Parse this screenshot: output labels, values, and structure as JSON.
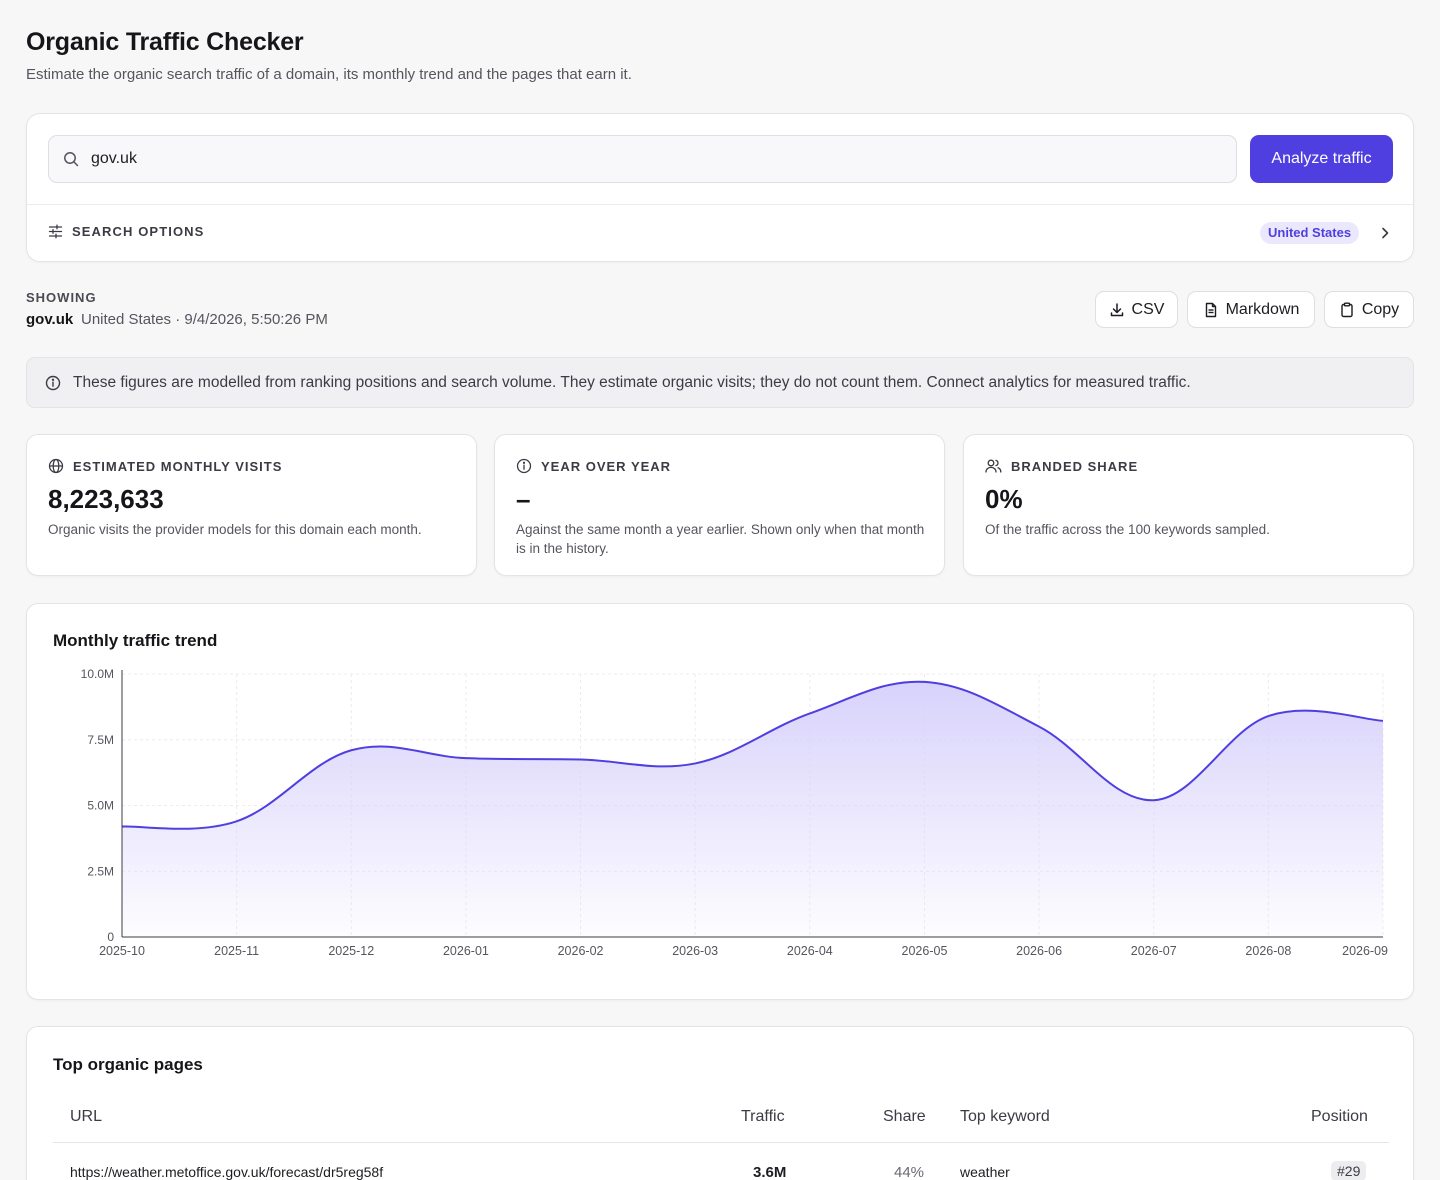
{
  "header": {
    "title": "Organic Traffic Checker",
    "subtitle": "Estimate the organic search traffic of a domain, its monthly trend and the pages that earn it."
  },
  "search": {
    "value": "gov.uk",
    "button_label": "Analyze traffic",
    "options_label": "SEARCH OPTIONS",
    "region_badge": "United States"
  },
  "showing": {
    "label": "SHOWING",
    "domain": "gov.uk",
    "meta": "United States · 9/4/2026, 5:50:26 PM"
  },
  "actions": {
    "csv": "CSV",
    "markdown": "Markdown",
    "copy": "Copy"
  },
  "notice": {
    "text": "These figures are modelled from ranking positions and search volume. They estimate organic visits; they do not count them. Connect analytics for measured traffic."
  },
  "stats": [
    {
      "icon": "globe-icon",
      "label": "ESTIMATED MONTHLY VISITS",
      "value": "8,223,633",
      "description": "Organic visits the provider models for this domain each month."
    },
    {
      "icon": "info-icon",
      "label": "YEAR OVER YEAR",
      "value": "–",
      "description": "Against the same month a year earlier. Shown only when that month is in the history."
    },
    {
      "icon": "users-icon",
      "label": "BRANDED SHARE",
      "value": "0%",
      "description": "Of the traffic across the 100 keywords sampled."
    }
  ],
  "chart_data": {
    "type": "area",
    "title": "Monthly traffic trend",
    "x": [
      "2025-10",
      "2025-11",
      "2025-12",
      "2026-01",
      "2026-02",
      "2026-03",
      "2026-04",
      "2026-05",
      "2026-06",
      "2026-07",
      "2026-08",
      "2026-09"
    ],
    "series": [
      {
        "values": [
          4.2,
          4.4,
          7.1,
          6.8,
          6.75,
          6.6,
          8.5,
          9.7,
          8.0,
          5.2,
          8.4,
          8.22
        ]
      }
    ],
    "y_ticks": [
      "0",
      "2.5M",
      "5.0M",
      "7.5M",
      "10.0M"
    ],
    "ylim": [
      0,
      10
    ],
    "grid": true,
    "line_color": "#4f3fe0",
    "fill_color": "#ddd8fb"
  },
  "table": {
    "title": "Top organic pages",
    "columns": {
      "url": "URL",
      "traffic": "Traffic",
      "share": "Share",
      "keyword": "Top keyword",
      "position": "Position"
    },
    "rows": [
      {
        "url": "https://weather.metoffice.gov.uk/forecast/dr5reg58f",
        "traffic": "3.6M",
        "share": "44%",
        "keyword": "weather",
        "position": "#29"
      }
    ]
  },
  "colors": {
    "accent": "#4f3fe0",
    "badge_bg": "#ebe8fd"
  }
}
